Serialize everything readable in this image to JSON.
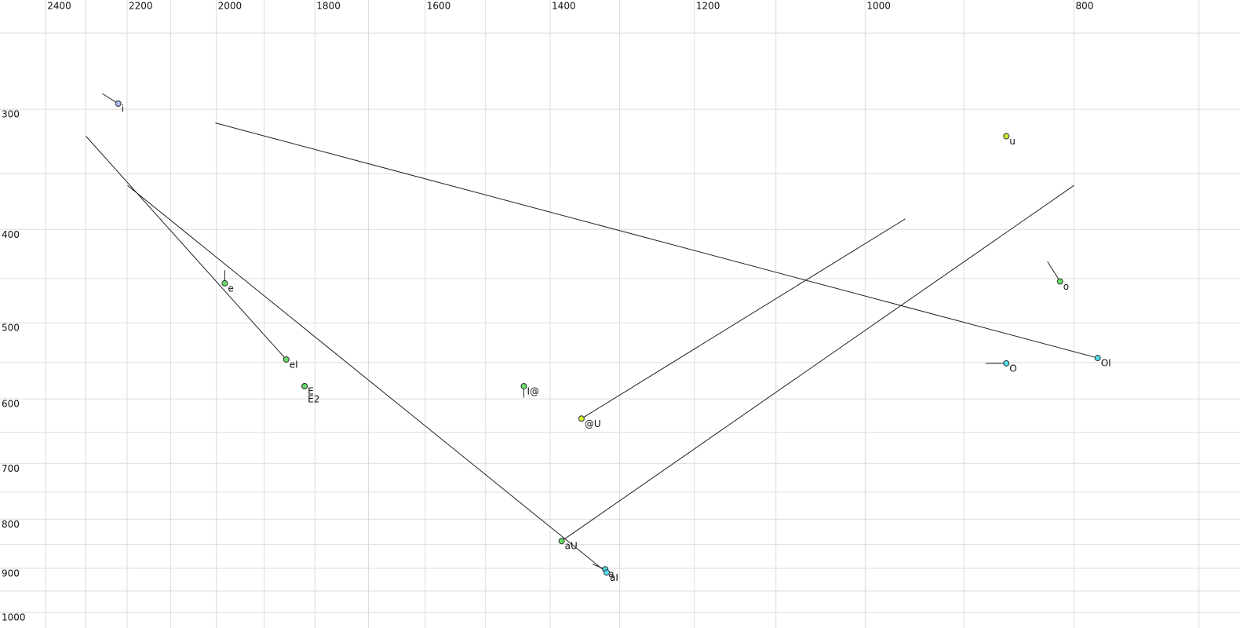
{
  "chart_data": {
    "type": "scatter",
    "xlim": [
      2520,
      670
    ],
    "ylim": [
      231,
      1038
    ],
    "log_x": true,
    "log_y": true,
    "grid": true,
    "xticks": [
      2400,
      2200,
      2000,
      1800,
      1600,
      1400,
      1200,
      1000,
      800
    ],
    "xminor": [
      2300,
      2100,
      1900,
      1700,
      1500,
      1300,
      1100,
      900,
      700
    ],
    "yticks": [
      300,
      400,
      500,
      600,
      700,
      800,
      900,
      1000
    ],
    "yminor": [
      250,
      350,
      450,
      550,
      650,
      750,
      850,
      950
    ],
    "points": [
      {
        "label": "i",
        "f2": 2221,
        "f1": 296,
        "end_f2": 2259,
        "end_f1": 289,
        "color": "#aab8ee"
      },
      {
        "label": "u",
        "f2": 860,
        "f1": 320,
        "color": "#ccee33"
      },
      {
        "label": "e",
        "f2": 1982,
        "f1": 455,
        "end_f2": 1982,
        "end_f1": 441,
        "color": "#66dd66"
      },
      {
        "label": "o",
        "f2": 812,
        "f1": 453,
        "end_f2": 823,
        "end_f1": 432,
        "color": "#66dd66"
      },
      {
        "label": "eI",
        "f2": 1856,
        "f1": 546,
        "end_f2": 2299,
        "end_f1": 320,
        "color": "#66dd66"
      },
      {
        "label": "OI",
        "f2": 780,
        "f1": 544,
        "end_f2": 2002,
        "end_f1": 310,
        "color": "#55ddee"
      },
      {
        "label": "O",
        "f2": 860,
        "f1": 551,
        "end_f2": 879,
        "end_f1": 551,
        "color": "#55ddee"
      },
      {
        "label": "E",
        "f2": 1820,
        "f1": 582,
        "color": "#66dd66"
      },
      {
        "label": "E2",
        "f2": 1820,
        "f1": 582,
        "color": "#66dd66"
      },
      {
        "label": "I@",
        "f2": 1440,
        "f1": 582,
        "end_f2": 1440,
        "end_f1": 598,
        "color": "#66dd66"
      },
      {
        "label": "@U",
        "f2": 1354,
        "f1": 629,
        "end_f2": 958,
        "end_f1": 390,
        "color": "#ccee33"
      },
      {
        "label": "aU",
        "f2": 1383,
        "f1": 843,
        "end_f2": 800,
        "end_f1": 360,
        "color": "#66dd66"
      },
      {
        "label": "a",
        "f2": 1320,
        "f1": 902,
        "end_f2": 1338,
        "end_f1": 891,
        "color": "#55ddee"
      },
      {
        "label": "aI",
        "f2": 1318,
        "f1": 909,
        "end_f2": 2199,
        "end_f1": 360,
        "color": "#55ddee"
      }
    ]
  }
}
